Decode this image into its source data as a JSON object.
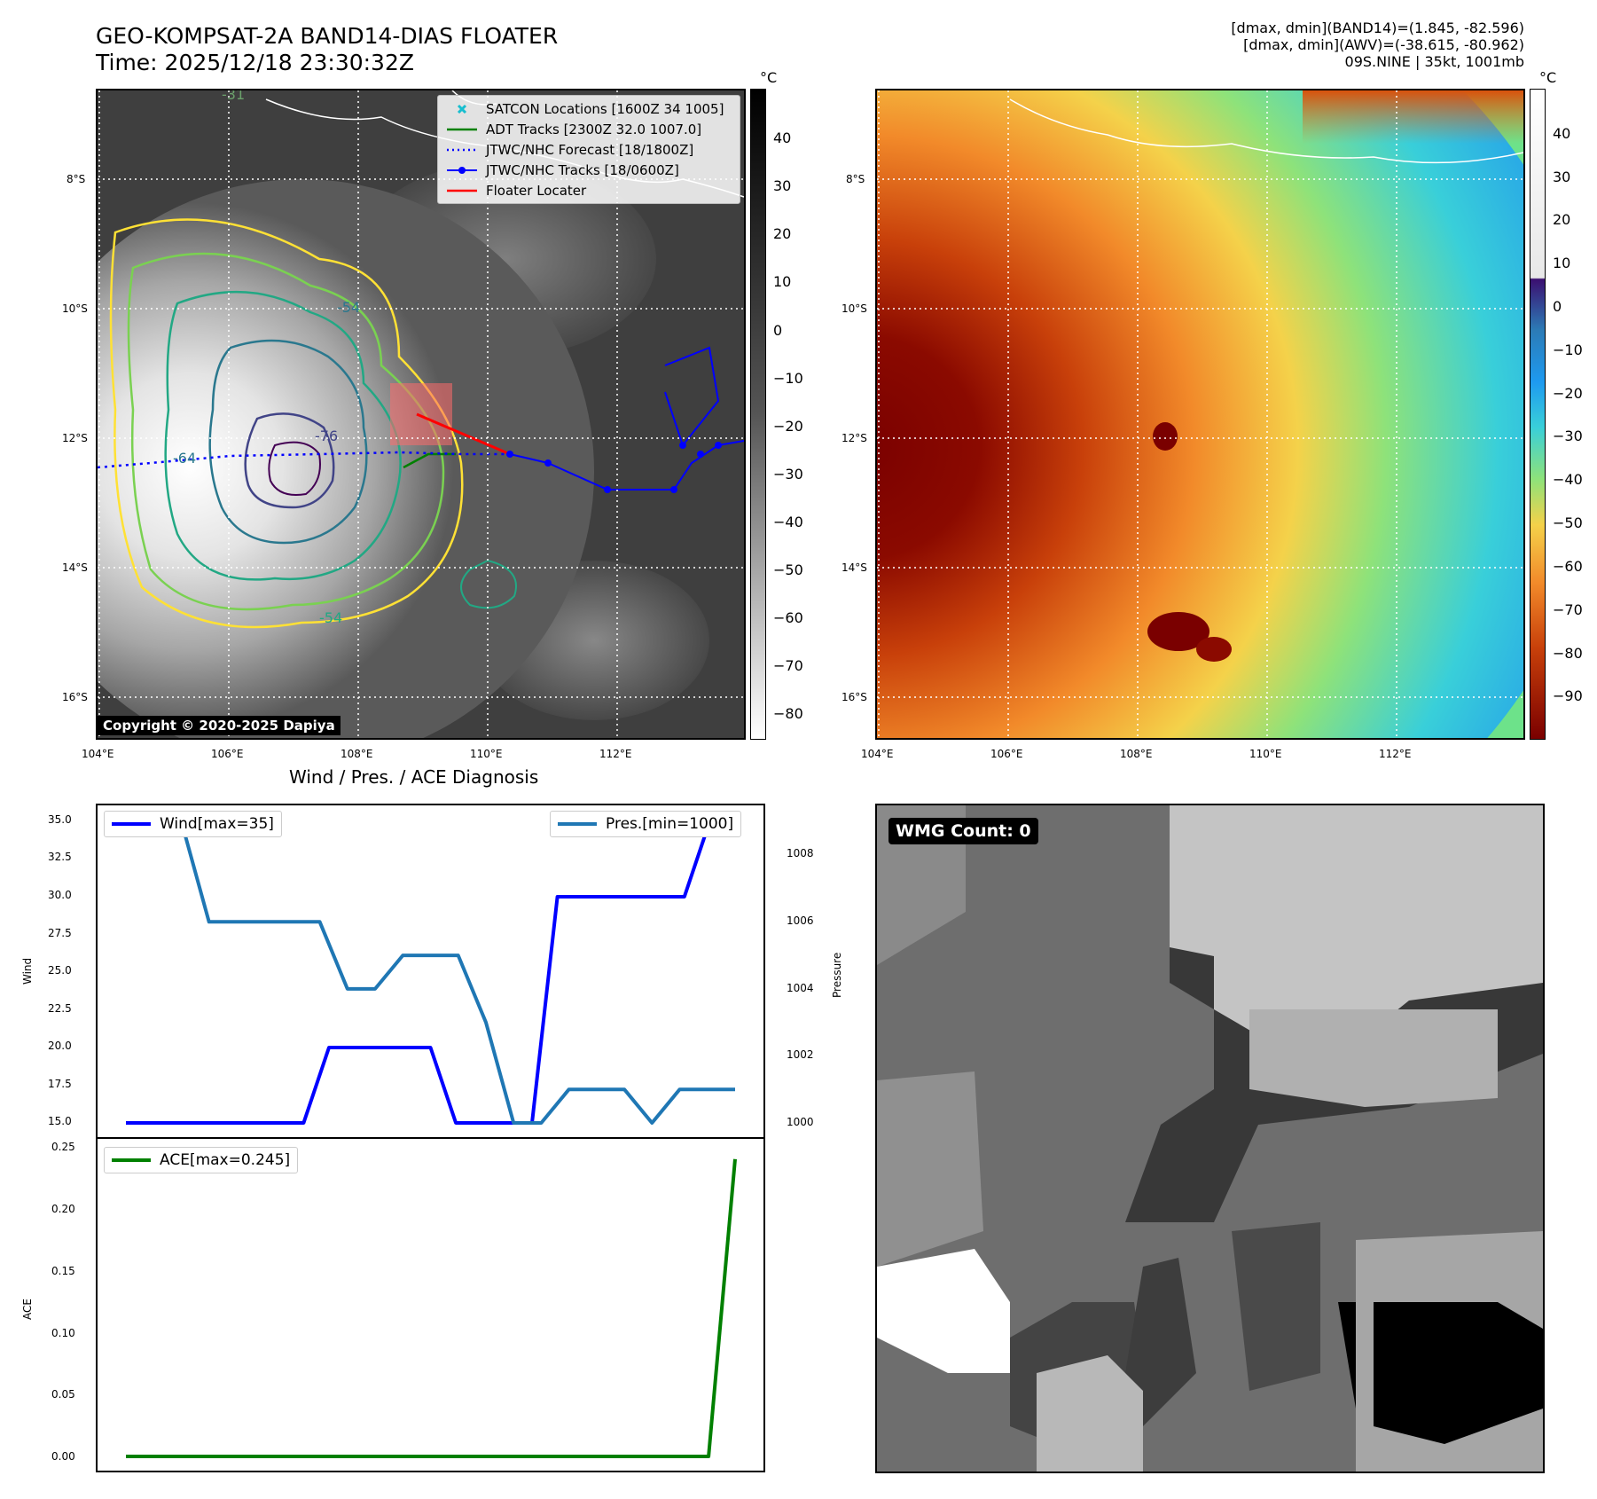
{
  "header": {
    "title_line1": "GEO-KOMPSAT-2A BAND14-DIAS FLOATER",
    "title_line2": "Time: 2025/12/18 23:30:32Z",
    "info_line1": "[dmax, dmin](BAND14)=(1.845, -82.596)",
    "info_line2": "[dmax, dmin](AWV)=(-38.615, -80.962)",
    "info_line3": "09S.NINE | 35kt, 1001mb"
  },
  "map": {
    "lat_labels": [
      "8°S",
      "10°S",
      "12°S",
      "14°S",
      "16°S"
    ],
    "lon_labels": [
      "104°E",
      "106°E",
      "108°E",
      "110°E",
      "112°E"
    ],
    "contour_labels": [
      "-31",
      "-54",
      "-64",
      "-76",
      "-54"
    ],
    "copyright": "Copyright © 2020-2025 Dapiya"
  },
  "legend": {
    "items": [
      {
        "label": "SATCON Locations [1600Z 34 1005]",
        "color": "#17becf"
      },
      {
        "label": "ADT Tracks [2300Z 32.0 1007.0]",
        "color": "#008000"
      },
      {
        "label": "JTWC/NHC Forecast [18/1800Z]",
        "color": "#0000ff"
      },
      {
        "label": "JTWC/NHC Tracks [18/0600Z]",
        "color": "#0000ff"
      },
      {
        "label": "Floater Locater",
        "color": "#ff0000"
      }
    ]
  },
  "colorbar_left": {
    "unit": "°C",
    "ticks": [
      "40",
      "30",
      "20",
      "10",
      "0",
      "−10",
      "−20",
      "−30",
      "−40",
      "−50",
      "−60",
      "−70",
      "−80"
    ]
  },
  "colorbar_right": {
    "unit": "°C",
    "ticks": [
      "40",
      "30",
      "20",
      "10",
      "0",
      "−10",
      "−20",
      "−30",
      "−40",
      "−50",
      "−60",
      "−70",
      "−80",
      "−90"
    ]
  },
  "diag": {
    "title": "Wind / Pres. / ACE Diagnosis",
    "wind_legend": "Wind[max=35]",
    "pres_legend": "Pres.[min=1000]",
    "ace_legend": "ACE[max=0.245]",
    "wind_ylabel": "Wind",
    "pres_ylabel": "Pressure",
    "ace_ylabel": "ACE",
    "wind_ticks": [
      "35.0",
      "32.5",
      "30.0",
      "27.5",
      "25.0",
      "22.5",
      "20.0",
      "17.5",
      "15.0"
    ],
    "pres_ticks": [
      "1008",
      "1006",
      "1004",
      "1002",
      "1000"
    ],
    "ace_ticks": [
      "0.25",
      "0.20",
      "0.15",
      "0.10",
      "0.05",
      "0.00"
    ],
    "wind_color": "#0000ff",
    "pres_color": "#1f77b4",
    "ace_color": "#008000"
  },
  "wmg": {
    "label": "WMG Count: 0"
  },
  "chart_data": [
    {
      "type": "line",
      "title": "Wind / Pres. / ACE Diagnosis",
      "ylabel": "Wind",
      "ylim": [
        15,
        35
      ],
      "series": [
        {
          "name": "Wind[max=35]",
          "values": [
            15,
            15,
            15,
            15,
            15,
            15,
            15,
            15,
            20,
            20,
            20,
            20,
            20,
            15,
            15,
            15,
            15,
            30,
            30,
            30,
            30,
            30,
            30,
            35,
            35
          ]
        }
      ]
    },
    {
      "type": "line",
      "ylabel": "Pressure",
      "ylim": [
        1000,
        1009
      ],
      "series": [
        {
          "name": "Pres.[min=1000]",
          "values": [
            1009,
            1009,
            1009,
            1006,
            1006,
            1006,
            1006,
            1006,
            1004,
            1004,
            1005,
            1005,
            1005,
            1003,
            1000,
            1000,
            1001,
            1001,
            1001,
            1000,
            1001,
            1001,
            1001
          ]
        }
      ]
    },
    {
      "type": "line",
      "ylabel": "ACE",
      "ylim": [
        0,
        0.25
      ],
      "series": [
        {
          "name": "ACE[max=0.245]",
          "values": [
            0,
            0,
            0,
            0,
            0,
            0,
            0,
            0,
            0,
            0,
            0,
            0,
            0,
            0,
            0,
            0,
            0,
            0,
            0,
            0,
            0,
            0,
            0,
            0.245
          ]
        }
      ]
    }
  ]
}
